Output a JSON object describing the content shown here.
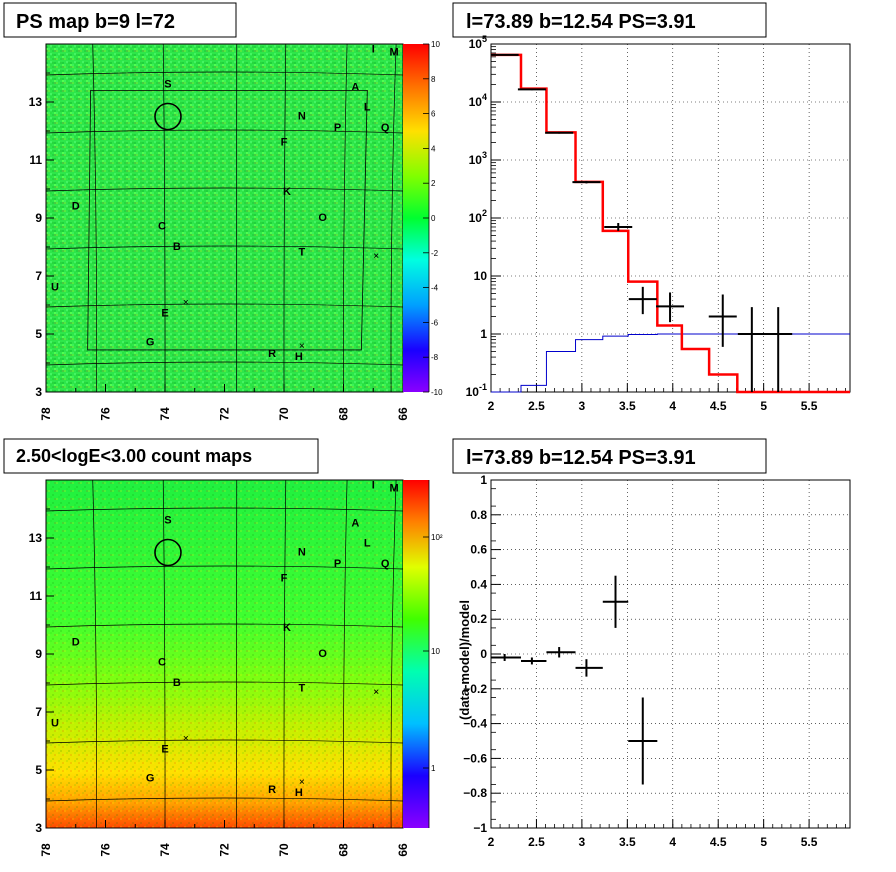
{
  "chart_data": [
    {
      "type": "heatmap",
      "title": "PS map b=9 l=72",
      "x_ticks": [
        "78",
        "76",
        "74",
        "72",
        "70",
        "68",
        "66"
      ],
      "y_ticks": [
        "3",
        "5",
        "7",
        "9",
        "11",
        "13"
      ],
      "xlim": [
        78,
        66
      ],
      "ylim": [
        3,
        15
      ],
      "colorbar_ticks": [
        "10",
        "8",
        "6",
        "4",
        "2",
        "0",
        "-2",
        "-4",
        "-6",
        "-8",
        "-10"
      ],
      "colorbar_range": [
        -10,
        10
      ],
      "sources": [
        {
          "label": "I",
          "l": 67.0,
          "b": 14.7
        },
        {
          "label": "M",
          "l": 66.3,
          "b": 14.6
        },
        {
          "label": "S",
          "l": 73.9,
          "b": 13.5
        },
        {
          "label": "A",
          "l": 67.6,
          "b": 13.4
        },
        {
          "label": "L",
          "l": 67.2,
          "b": 12.7
        },
        {
          "label": "N",
          "l": 69.4,
          "b": 12.4
        },
        {
          "label": "P",
          "l": 68.2,
          "b": 12.0
        },
        {
          "label": "Q",
          "l": 66.6,
          "b": 12.0
        },
        {
          "label": "F",
          "l": 70.0,
          "b": 11.5
        },
        {
          "label": "K",
          "l": 69.9,
          "b": 9.8
        },
        {
          "label": "D",
          "l": 77.0,
          "b": 9.3
        },
        {
          "label": "O",
          "l": 68.7,
          "b": 8.9
        },
        {
          "label": "C",
          "l": 74.1,
          "b": 8.6
        },
        {
          "label": "B",
          "l": 73.6,
          "b": 7.9
        },
        {
          "label": "T",
          "l": 69.4,
          "b": 7.7
        },
        {
          "label": "U",
          "l": 77.7,
          "b": 6.5
        },
        {
          "label": "E",
          "l": 74.0,
          "b": 5.6
        },
        {
          "label": "G",
          "l": 74.5,
          "b": 4.6
        },
        {
          "label": "R",
          "l": 70.4,
          "b": 4.2
        },
        {
          "label": "H",
          "l": 69.5,
          "b": 4.1
        }
      ]
    },
    {
      "type": "line",
      "title": "l=73.89 b=12.54 PS=3.91",
      "x_ticks": [
        "2",
        "2.5",
        "3",
        "3.5",
        "4",
        "4.5",
        "5",
        "5.5"
      ],
      "y_ticks": [
        "10^-1",
        "1",
        "10",
        "10^2",
        "10^3",
        "10^4",
        "10^5"
      ],
      "xlim": [
        2,
        5.95
      ],
      "ylim": [
        0.1,
        100000
      ],
      "yscale": "log",
      "grid": true,
      "bin_edges": [
        2.0,
        2.33,
        2.61,
        2.93,
        3.23,
        3.51,
        3.83,
        4.1,
        4.4,
        4.71,
        5.0,
        5.31,
        5.95
      ],
      "red_model": [
        65000,
        17000,
        3000,
        420,
        60,
        8,
        1.4,
        0.55,
        0.2,
        0.08,
        0.08,
        0.08
      ],
      "blue_model": [
        0.07,
        0.13,
        0.5,
        0.8,
        0.92,
        0.98,
        1.0,
        1.0,
        1.0,
        1.0,
        1.0,
        1.0
      ],
      "data_points": [
        {
          "x": 2.15,
          "y": 65000,
          "ylo": 64000,
          "yhi": 66000
        },
        {
          "x": 2.45,
          "y": 16500,
          "ylo": 16000,
          "yhi": 17000
        },
        {
          "x": 2.75,
          "y": 2950,
          "ylo": 2850,
          "yhi": 3050
        },
        {
          "x": 3.05,
          "y": 415,
          "ylo": 395,
          "yhi": 435
        },
        {
          "x": 3.4,
          "y": 70,
          "ylo": 60,
          "yhi": 82
        },
        {
          "x": 3.67,
          "y": 4,
          "ylo": 2.2,
          "yhi": 6.5
        },
        {
          "x": 3.97,
          "y": 3,
          "ylo": 1.6,
          "yhi": 5.2
        },
        {
          "x": 4.55,
          "y": 2,
          "ylo": 0.6,
          "yhi": 4.8
        },
        {
          "x": 4.87,
          "y": 1,
          "ylo": 0.1,
          "yhi": 2.9
        },
        {
          "x": 5.16,
          "y": 1,
          "ylo": 0.1,
          "yhi": 2.9
        }
      ]
    },
    {
      "type": "heatmap",
      "title": "2.50<logE<3.00 count maps",
      "x_ticks": [
        "78",
        "76",
        "74",
        "72",
        "70",
        "68",
        "66"
      ],
      "y_ticks": [
        "3",
        "5",
        "7",
        "9",
        "11",
        "13"
      ],
      "xlim": [
        78,
        66
      ],
      "ylim": [
        3,
        15
      ],
      "colorbar_ticks": [
        "10²",
        "10",
        "1"
      ],
      "colorbar_scale": "log"
    },
    {
      "type": "scatter",
      "title": "l=73.89 b=12.54 PS=3.91",
      "ylabel": "(data-model)/model",
      "x_ticks": [
        "2",
        "2.5",
        "3",
        "3.5",
        "4",
        "4.5",
        "5",
        "5.5"
      ],
      "y_ticks": [
        "−1",
        "−0.8",
        "−0.6",
        "−0.4",
        "−0.2",
        "0",
        "0.2",
        "0.4",
        "0.6",
        "0.8",
        "1"
      ],
      "xlim": [
        2,
        5.95
      ],
      "ylim": [
        -1,
        1
      ],
      "grid": true,
      "points": [
        {
          "x": 2.15,
          "xlo": 2.0,
          "xhi": 2.33,
          "y": -0.02,
          "err": 0.02
        },
        {
          "x": 2.45,
          "xlo": 2.33,
          "xhi": 2.61,
          "y": -0.04,
          "err": 0.02
        },
        {
          "x": 2.75,
          "xlo": 2.61,
          "xhi": 2.93,
          "y": 0.01,
          "err": 0.03
        },
        {
          "x": 3.05,
          "xlo": 2.93,
          "xhi": 3.23,
          "y": -0.08,
          "err": 0.05
        },
        {
          "x": 3.37,
          "xlo": 3.23,
          "xhi": 3.51,
          "y": 0.3,
          "err": 0.15
        },
        {
          "x": 3.67,
          "xlo": 3.51,
          "xhi": 3.83,
          "y": -0.5,
          "err": 0.25
        }
      ]
    }
  ]
}
